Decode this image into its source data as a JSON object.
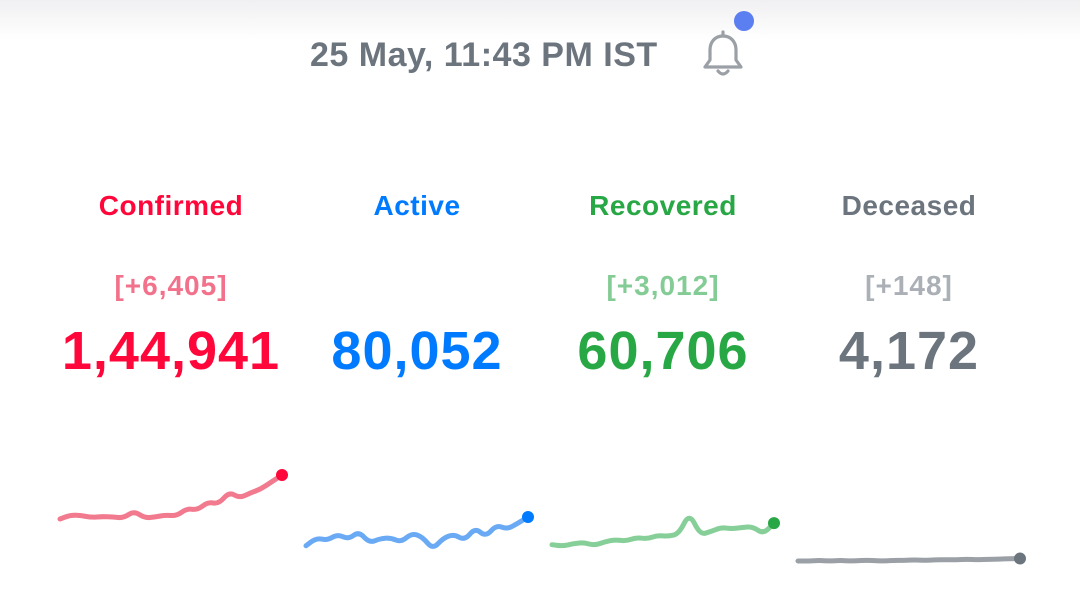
{
  "header": {
    "timestamp": "25 May, 11:43 PM IST",
    "bell_icon": "bell-icon",
    "notification_dot_color": "#5b7ff0"
  },
  "stats": [
    {
      "key": "confirmed",
      "label": "Confirmed",
      "delta": "[+6,405]",
      "value": "1,44,941",
      "color": "#ff073a",
      "label_color": "#ff073a",
      "delta_color": "#f2728c",
      "spark_color": "#f27a8e",
      "trend": [
        0.12,
        0.2,
        0.19,
        0.15,
        0.17,
        0.16,
        0.14,
        0.28,
        0.14,
        0.16,
        0.2,
        0.18,
        0.33,
        0.3,
        0.46,
        0.42,
        0.66,
        0.54,
        0.64,
        0.72,
        0.86,
        1.0
      ]
    },
    {
      "key": "active",
      "label": "Active",
      "delta": "",
      "value": "80,052",
      "color": "#007bff",
      "label_color": "#007bff",
      "delta_color": "#7fb5ff",
      "spark_color": "#6aaaf5",
      "trend": [
        0.2,
        0.42,
        0.35,
        0.52,
        0.38,
        0.6,
        0.28,
        0.4,
        0.42,
        0.3,
        0.55,
        0.45,
        0.1,
        0.42,
        0.52,
        0.35,
        0.7,
        0.45,
        0.78,
        0.66,
        0.82,
        1.0
      ]
    },
    {
      "key": "recovered",
      "label": "Recovered",
      "delta": "[+3,012]",
      "value": "60,706",
      "color": "#28a745",
      "label_color": "#28a745",
      "delta_color": "#84cc95",
      "spark_color": "#86cf98",
      "trend": [
        0.12,
        0.08,
        0.15,
        0.18,
        0.1,
        0.2,
        0.26,
        0.22,
        0.32,
        0.28,
        0.38,
        0.35,
        0.42,
        1.0,
        0.4,
        0.48,
        0.6,
        0.56,
        0.6,
        0.62,
        0.42,
        0.72
      ]
    },
    {
      "key": "deceased",
      "label": "Deceased",
      "delta": "[+148]",
      "value": "4,172",
      "color": "#6c757d",
      "label_color": "#6c757d",
      "delta_color": "#aab0b6",
      "spark_color": "#9aa0a6",
      "trend": [
        0.0,
        0.0,
        0.01,
        0.0,
        0.01,
        0.0,
        0.01,
        0.01,
        0.0,
        0.01,
        0.01,
        0.02,
        0.01,
        0.02,
        0.02,
        0.02,
        0.03,
        0.02,
        0.03,
        0.03,
        0.04,
        0.04
      ]
    }
  ]
}
